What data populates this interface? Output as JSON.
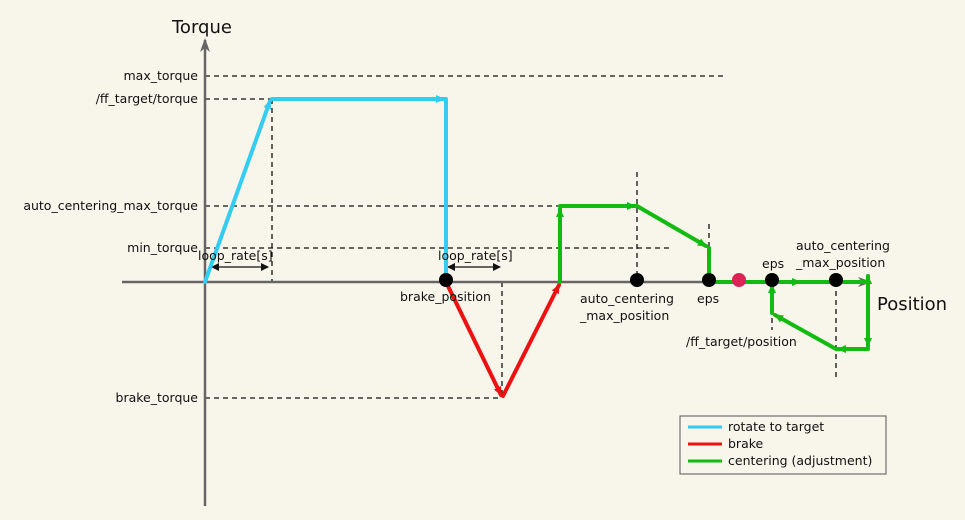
{
  "axes": {
    "y_title": "Torque",
    "x_title": "Position"
  },
  "y_labels": {
    "max_torque": "max_torque",
    "ff_target_torque": "/ff_target/torque",
    "auto_centering_max_torque": "auto_centering_max_torque",
    "min_torque": "min_torque",
    "brake_torque": "brake_torque"
  },
  "annotations": {
    "loop_rate_1": "loop_rate[s]",
    "loop_rate_2": "loop_rate[s]",
    "brake_position": "brake_position",
    "acmp_lower_1": "auto_centering",
    "acmp_lower_2": "_max_position",
    "eps_lower": "eps",
    "eps_right": "eps",
    "acmp_right_1": "auto_centering",
    "acmp_right_2": "_max_position",
    "ff_target_position": "/ff_target/position"
  },
  "legend": {
    "items": [
      {
        "label": "rotate to target",
        "color": "#33ccf2"
      },
      {
        "label": "brake",
        "color": "#ee1111"
      },
      {
        "label": "centering (adjustment)",
        "color": "#11bb11"
      }
    ]
  },
  "colors": {
    "rotate": "#33ccf2",
    "brake": "#ee1111",
    "centering": "#11bb11",
    "target_dot": "#dd2255",
    "axis": "#666666"
  }
}
